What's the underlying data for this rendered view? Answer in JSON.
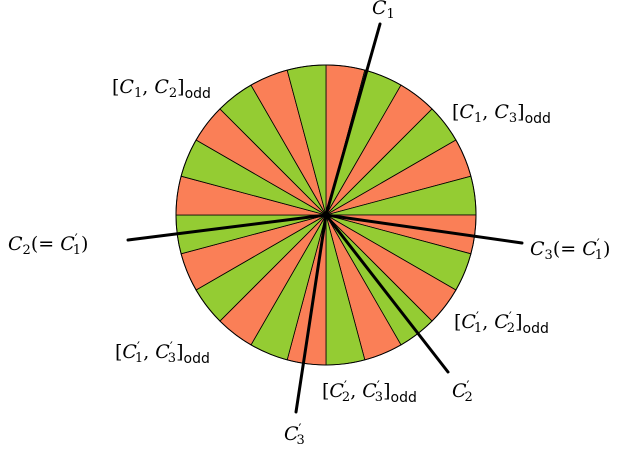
{
  "colors": {
    "orange": "#fa7f57",
    "green": "#94cc33",
    "stroke": "#000000"
  },
  "disk": {
    "sectors": 24,
    "first_color": "orange"
  },
  "lines": [
    {
      "id": "C1"
    },
    {
      "id": "C2"
    },
    {
      "id": "C3"
    },
    {
      "id": "C2p"
    },
    {
      "id": "C3p"
    }
  ],
  "labels": {
    "c1": {
      "base": "C",
      "sub": "1",
      "prime": ""
    },
    "c2": {
      "base": "C",
      "sub": "2",
      "eq_prefix": "(= ",
      "eq_base": "C",
      "eq_prime": "′",
      "eq_sub": "1",
      "eq_suffix": ")"
    },
    "c3": {
      "base": "C",
      "sub": "3",
      "eq_prefix": "(= ",
      "eq_base": "C",
      "eq_prime": "′",
      "eq_sub": "1",
      "eq_suffix": ")"
    },
    "c2p": {
      "base": "C",
      "prime": "′",
      "sub": "2"
    },
    "c3p": {
      "base": "C",
      "prime": "′",
      "sub": "3"
    },
    "c1c2": {
      "open": "[",
      "a": "C",
      "a_prime": "",
      "a_sub": "1",
      "sep": ", ",
      "b": "C",
      "b_prime": "",
      "b_sub": "2",
      "close": "]",
      "tag": "odd"
    },
    "c1c3": {
      "open": "[",
      "a": "C",
      "a_prime": "",
      "a_sub": "1",
      "sep": ", ",
      "b": "C",
      "b_prime": "",
      "b_sub": "3",
      "close": "]",
      "tag": "odd"
    },
    "c1pc2p": {
      "open": "[",
      "a": "C",
      "a_prime": "′",
      "a_sub": "1",
      "sep": ", ",
      "b": "C",
      "b_prime": "′",
      "b_sub": "2",
      "close": "]",
      "tag": "odd"
    },
    "c1pc3p": {
      "open": "[",
      "a": "C",
      "a_prime": "′",
      "a_sub": "1",
      "sep": ", ",
      "b": "C",
      "b_prime": "′",
      "b_sub": "3",
      "close": "]",
      "tag": "odd"
    },
    "c2pc3p": {
      "open": "[",
      "a": "C",
      "a_prime": "′",
      "a_sub": "2",
      "sep": ", ",
      "b": "C",
      "b_prime": "′",
      "b_sub": "3",
      "close": "]",
      "tag": "odd"
    }
  }
}
